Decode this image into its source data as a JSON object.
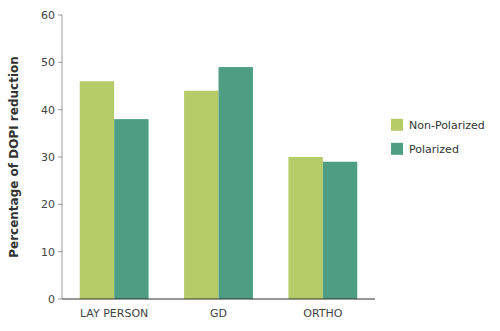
{
  "chart_data": {
    "type": "bar",
    "categories": [
      "LAY PERSON",
      "GD",
      "ORTHO"
    ],
    "series": [
      {
        "name": "Non-Polarized",
        "color": "#b5cc68",
        "values": [
          46,
          44,
          30
        ]
      },
      {
        "name": "Polarized",
        "color": "#4e9e84",
        "values": [
          38,
          49,
          29
        ]
      }
    ],
    "ylabel": "Percentage of DOPI reduction",
    "ylim": [
      0,
      60
    ],
    "yticks": [
      0,
      10,
      20,
      30,
      40,
      50,
      60
    ],
    "grid": false,
    "legend": "right"
  }
}
